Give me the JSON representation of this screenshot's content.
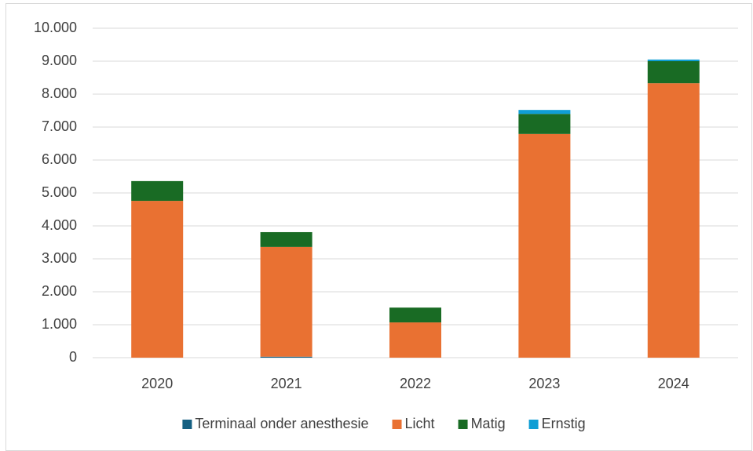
{
  "chart_data": {
    "type": "stacked_bar",
    "categories": [
      "2020",
      "2021",
      "2022",
      "2023",
      "2024"
    ],
    "series": [
      {
        "name": "Terminaal onder anesthesie",
        "color": "#156082",
        "values": [
          0,
          30,
          0,
          0,
          0
        ]
      },
      {
        "name": "Licht",
        "color": "#e97132",
        "values": [
          4760,
          3330,
          1070,
          6790,
          8330
        ]
      },
      {
        "name": "Matig",
        "color": "#196b24",
        "values": [
          600,
          450,
          450,
          610,
          670
        ]
      },
      {
        "name": "Ernstig",
        "color": "#0f9ed5",
        "values": [
          0,
          0,
          0,
          120,
          50
        ]
      }
    ],
    "ylim": [
      0,
      10000
    ],
    "yticks": [
      0,
      {
        "value": 1000,
        "label": "1.000"
      },
      {
        "value": 2000,
        "label": "2.000"
      },
      {
        "value": 3000,
        "label": "3.000"
      },
      {
        "value": 4000,
        "label": "4.000"
      },
      {
        "value": 5000,
        "label": "5.000"
      },
      {
        "value": 6000,
        "label": "6.000"
      },
      {
        "value": 7000,
        "label": "7.000"
      },
      {
        "value": 8000,
        "label": "8.000"
      },
      {
        "value": 9000,
        "label": "9.000"
      },
      {
        "value": 10000,
        "label": "10.000"
      }
    ],
    "grid": true,
    "legend": "bottom"
  }
}
